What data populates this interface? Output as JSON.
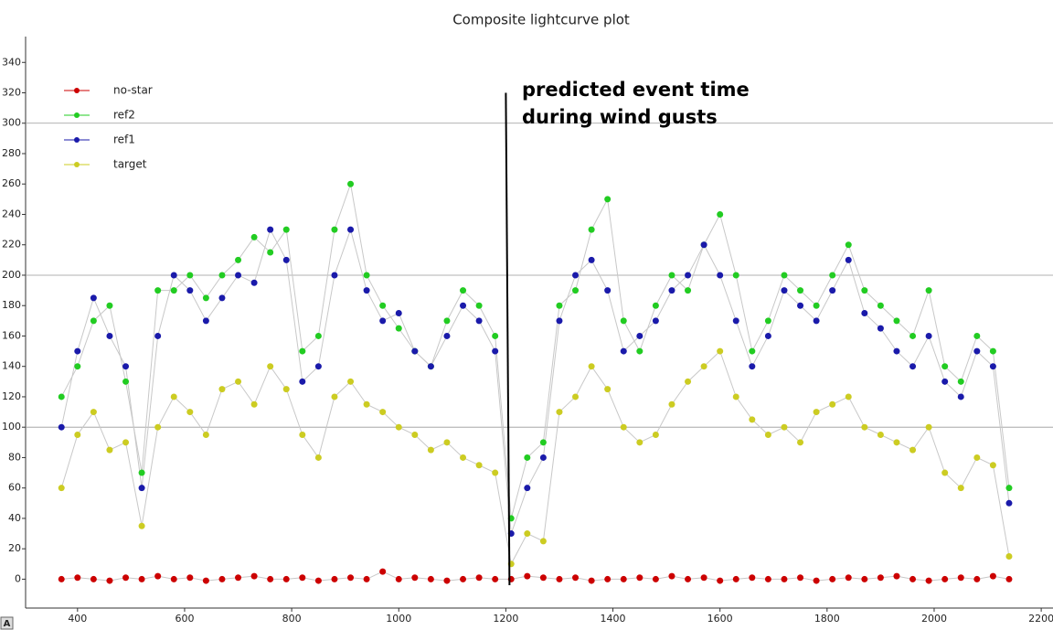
{
  "chart_data": {
    "type": "line",
    "title": "Composite lightcurve plot",
    "x": [
      370,
      400,
      430,
      460,
      490,
      520,
      550,
      580,
      610,
      640,
      670,
      700,
      730,
      760,
      790,
      820,
      850,
      880,
      910,
      940,
      970,
      1000,
      1030,
      1060,
      1090,
      1120,
      1150,
      1180,
      1210,
      1240,
      1270,
      1300,
      1330,
      1360,
      1390,
      1420,
      1450,
      1480,
      1510,
      1540,
      1570,
      1600,
      1630,
      1660,
      1690,
      1720,
      1750,
      1780,
      1810,
      1840,
      1870,
      1900,
      1930,
      1960,
      1990,
      2020,
      2050,
      2080,
      2110,
      2140
    ],
    "series": [
      {
        "name": "no-star",
        "color": "#cc0000",
        "values": [
          0,
          1,
          0,
          -1,
          1,
          0,
          2,
          0,
          1,
          -1,
          0,
          1,
          2,
          0,
          0,
          1,
          -1,
          0,
          1,
          0,
          5,
          0,
          1,
          0,
          -1,
          0,
          1,
          0,
          0,
          2,
          1,
          0,
          1,
          -1,
          0,
          0,
          1,
          0,
          2,
          0,
          1,
          -1,
          0,
          1,
          0,
          0,
          1,
          -1,
          0,
          1,
          0,
          1,
          2,
          0,
          -1,
          0,
          1,
          0,
          2,
          0
        ]
      },
      {
        "name": "ref2",
        "color": "#22cc22",
        "values": [
          120,
          140,
          170,
          180,
          130,
          70,
          190,
          190,
          200,
          185,
          200,
          210,
          225,
          215,
          230,
          150,
          160,
          230,
          260,
          200,
          180,
          165,
          150,
          140,
          170,
          190,
          180,
          160,
          40,
          80,
          90,
          180,
          190,
          230,
          250,
          170,
          150,
          180,
          200,
          190,
          220,
          240,
          200,
          150,
          170,
          200,
          190,
          180,
          200,
          220,
          190,
          180,
          170,
          160,
          190,
          140,
          130,
          160,
          150,
          60
        ]
      },
      {
        "name": "ref1",
        "color": "#1a1aaa",
        "values": [
          100,
          150,
          185,
          160,
          140,
          60,
          160,
          200,
          190,
          170,
          185,
          200,
          195,
          230,
          210,
          130,
          140,
          200,
          230,
          190,
          170,
          175,
          150,
          140,
          160,
          180,
          170,
          150,
          30,
          60,
          80,
          170,
          200,
          210,
          190,
          150,
          160,
          170,
          190,
          200,
          220,
          200,
          170,
          140,
          160,
          190,
          180,
          170,
          190,
          210,
          175,
          165,
          150,
          140,
          160,
          130,
          120,
          150,
          140,
          50
        ]
      },
      {
        "name": "target",
        "color": "#cccc22",
        "values": [
          60,
          95,
          110,
          85,
          90,
          35,
          100,
          120,
          110,
          95,
          125,
          130,
          115,
          140,
          125,
          95,
          80,
          120,
          130,
          115,
          110,
          100,
          95,
          85,
          90,
          80,
          75,
          70,
          10,
          30,
          25,
          110,
          120,
          140,
          125,
          100,
          90,
          95,
          115,
          130,
          140,
          150,
          120,
          105,
          95,
          100,
          90,
          110,
          115,
          120,
          100,
          95,
          90,
          85,
          100,
          70,
          60,
          80,
          75,
          15
        ]
      }
    ],
    "xlim": [
      303,
      2222
    ],
    "xticks": [
      400,
      600,
      800,
      1000,
      1200,
      1400,
      1600,
      1800,
      2000,
      2200
    ],
    "ylim": [
      -19,
      357
    ],
    "yticks": [
      0,
      20,
      40,
      60,
      80,
      100,
      120,
      140,
      160,
      180,
      200,
      220,
      240,
      260,
      280,
      300,
      320,
      340
    ],
    "ygrid": [
      100,
      200,
      300
    ],
    "line_color": "#c8c8c8",
    "annotation": {
      "lines": [
        "predicted event time",
        "during wind gusts"
      ],
      "x": 1200,
      "y": 320
    },
    "corner_icon": "A"
  }
}
